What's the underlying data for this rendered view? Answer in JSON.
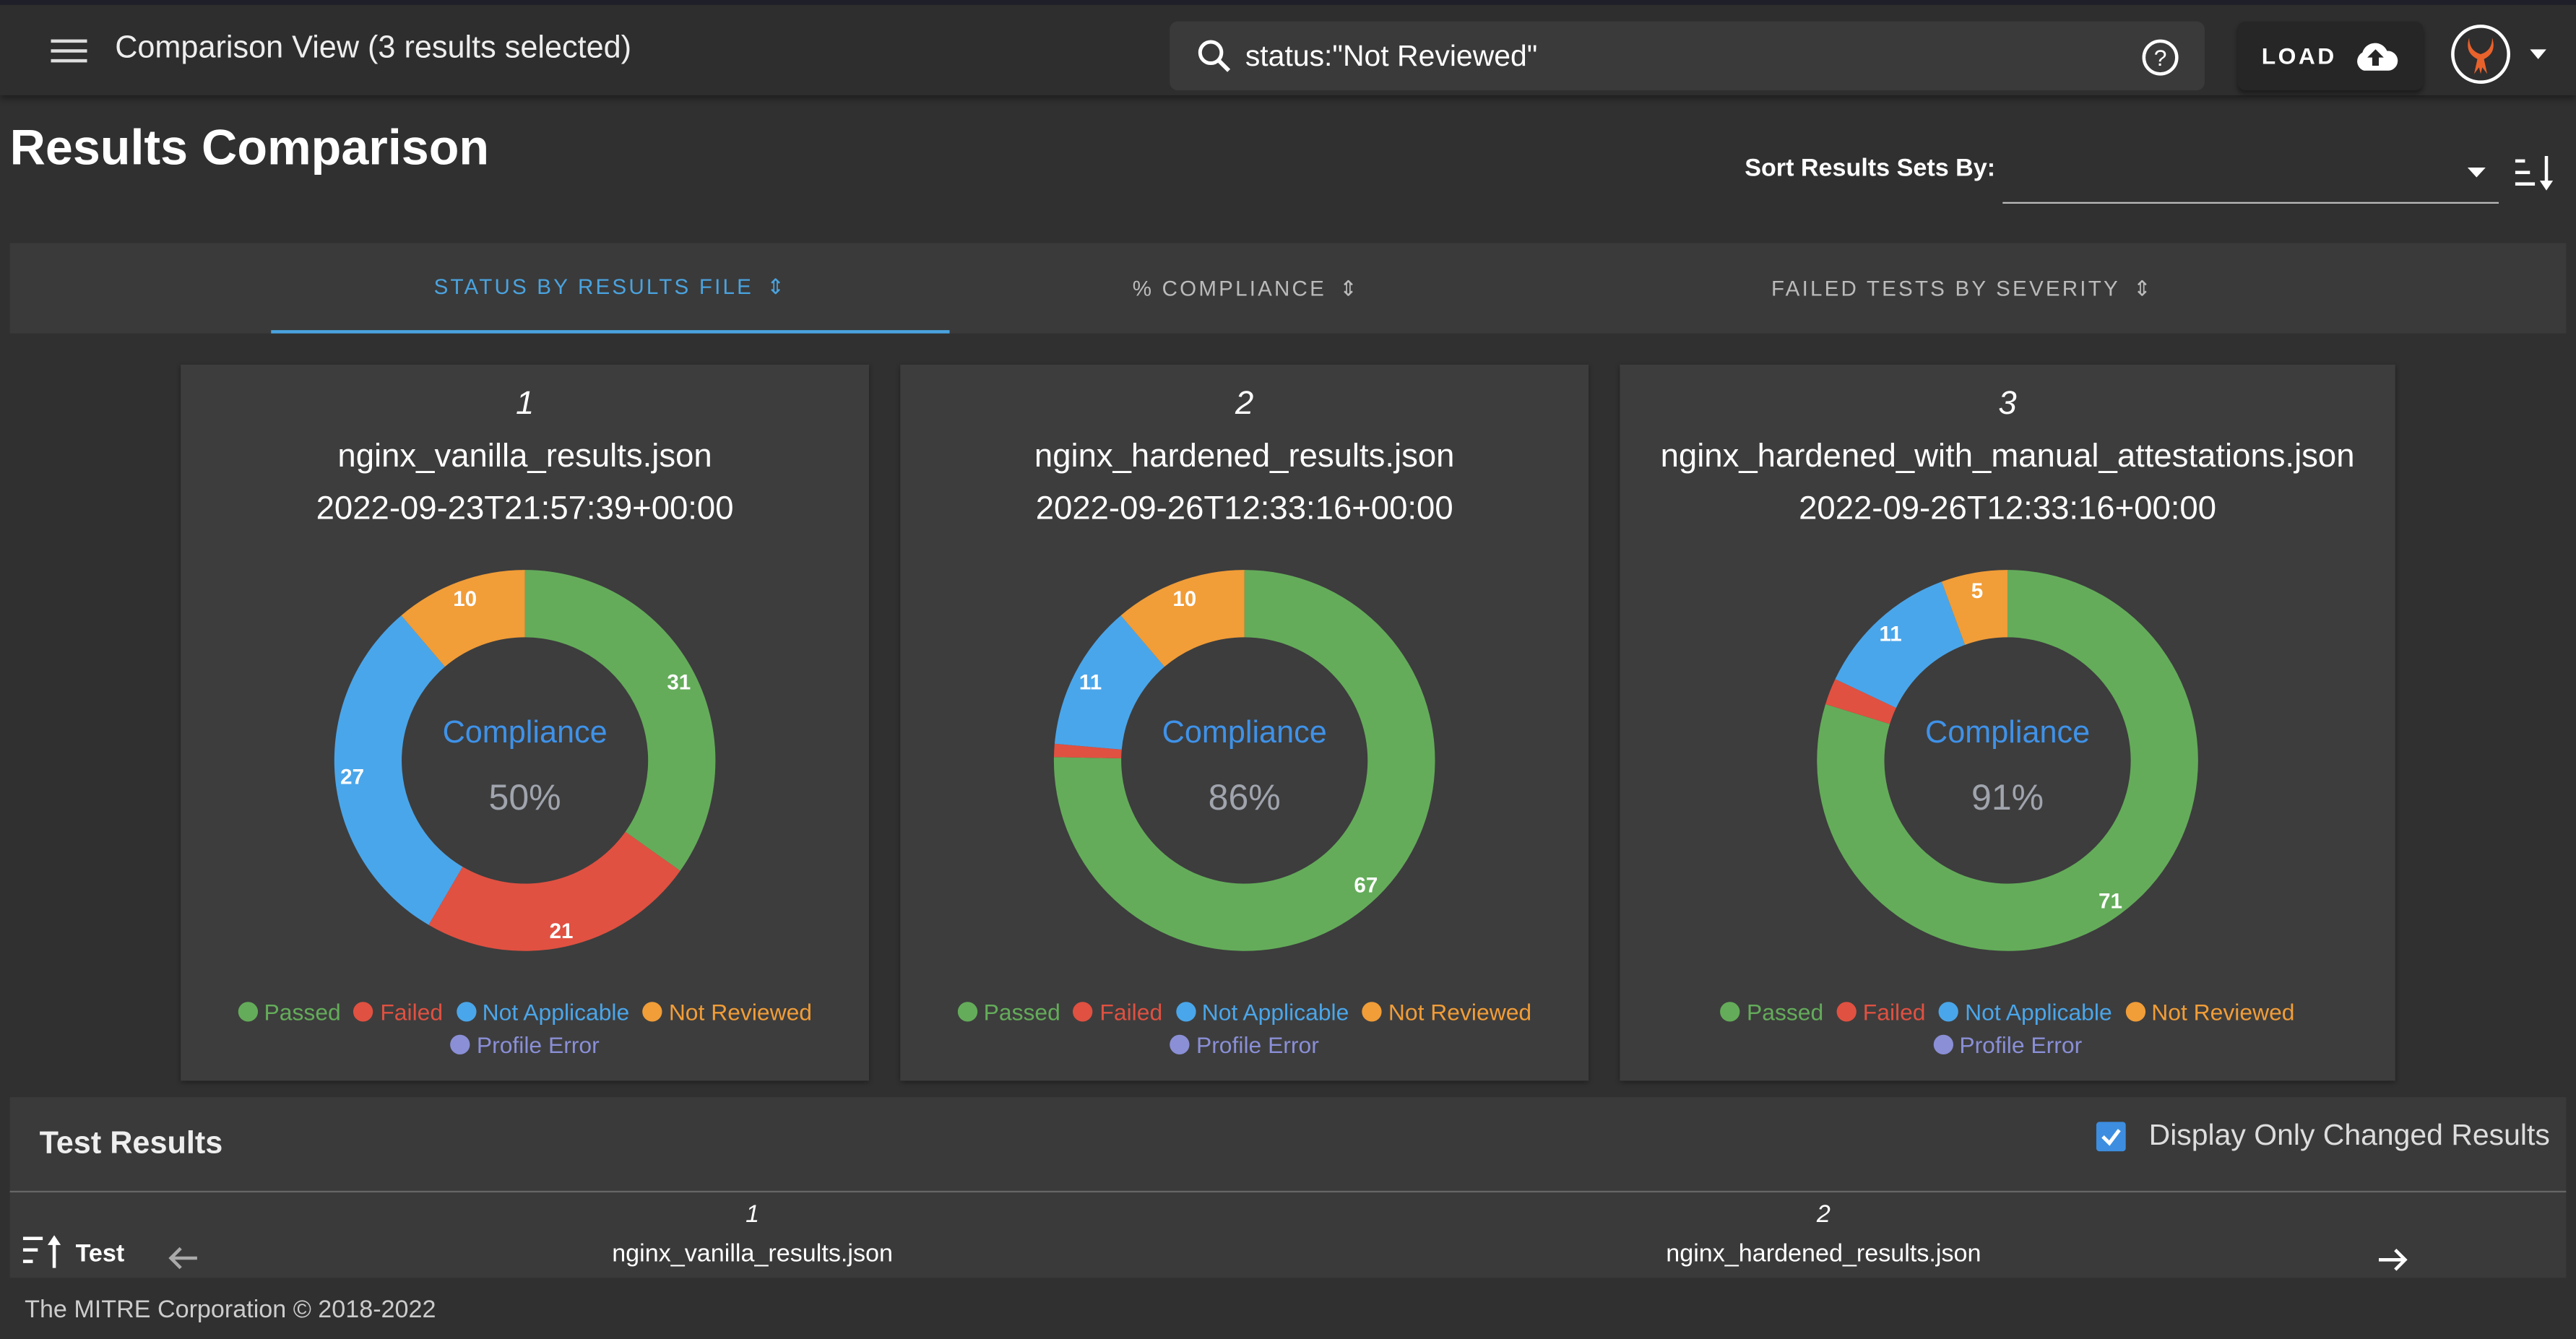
{
  "topbar": {
    "title": "Comparison View (3 results selected)",
    "search_value": "status:\"Not Reviewed\"",
    "load_label": "LOAD"
  },
  "page": {
    "title": "Results Comparison",
    "sort_label": "Sort Results Sets By:",
    "sort_value": ""
  },
  "tabs": [
    {
      "label": "STATUS BY RESULTS FILE",
      "active": true
    },
    {
      "label": "% COMPLIANCE",
      "active": false
    },
    {
      "label": "FAILED TESTS BY SEVERITY",
      "active": false
    }
  ],
  "colors": {
    "Passed": "#64ac5a",
    "Failed": "#e05141",
    "Not Applicable": "#4aa6ea",
    "Not Reviewed": "#f19d38",
    "Profile Error": "#8a8fd6",
    "accent": "#4aa3df"
  },
  "legend": [
    "Passed",
    "Failed",
    "Not Applicable",
    "Not Reviewed",
    "Profile Error"
  ],
  "chart_data": [
    {
      "type": "pie",
      "index": "1",
      "file": "nginx_vanilla_results.json",
      "date": "2022-09-23T21:57:39+00:00",
      "center_label": "Compliance",
      "center_value": "50%",
      "categories": [
        "Passed",
        "Failed",
        "Not Applicable",
        "Not Reviewed",
        "Profile Error"
      ],
      "values": [
        31,
        21,
        27,
        10,
        0
      ]
    },
    {
      "type": "pie",
      "index": "2",
      "file": "nginx_hardened_results.json",
      "date": "2022-09-26T12:33:16+00:00",
      "center_label": "Compliance",
      "center_value": "86%",
      "categories": [
        "Passed",
        "Failed",
        "Not Applicable",
        "Not Reviewed",
        "Profile Error"
      ],
      "values": [
        67,
        1,
        11,
        10,
        0
      ]
    },
    {
      "type": "pie",
      "index": "3",
      "file": "nginx_hardened_with_manual_attestations.json",
      "date": "2022-09-26T12:33:16+00:00",
      "center_label": "Compliance",
      "center_value": "91%",
      "categories": [
        "Passed",
        "Failed",
        "Not Applicable",
        "Not Reviewed",
        "Profile Error"
      ],
      "values": [
        71,
        2,
        11,
        5,
        0
      ]
    }
  ],
  "results": {
    "title": "Test Results",
    "checkbox_label": "Display Only Changed Results",
    "checkbox_checked": true,
    "test_header": "Test",
    "columns": [
      {
        "index": "1",
        "file": "nginx_vanilla_results.json"
      },
      {
        "index": "2",
        "file": "nginx_hardened_results.json"
      }
    ]
  },
  "footer": {
    "text": "The MITRE Corporation © 2018-2022"
  }
}
